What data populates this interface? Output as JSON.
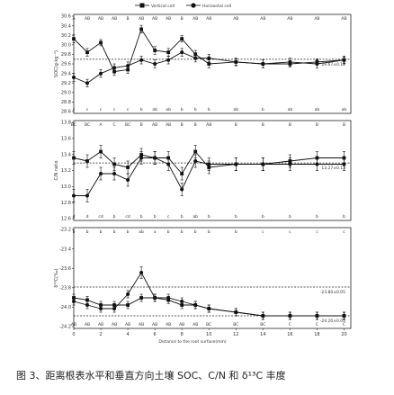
{
  "chart_data": {
    "type": "line",
    "legend": [
      "Vertical cell",
      "Horizontal cell"
    ],
    "legend_placement": "top-center",
    "x": [
      0,
      1,
      2,
      3,
      4,
      5,
      6,
      7,
      8,
      9,
      10,
      12,
      14,
      16,
      18,
      20
    ],
    "x_tick_labels": [
      "0",
      "2",
      "4",
      "6",
      "8",
      "10",
      "12",
      "14",
      "16",
      "18",
      "20"
    ],
    "xlabel": "Distance to the root surface(mm)",
    "panels": [
      {
        "ylabel": "SOC(g·kg⁻¹)",
        "ylim": [
          28.5,
          30.6
        ],
        "y_tick_labels": [
          "30.6",
          "30.4",
          "30.2",
          "30.0",
          "29.8",
          "29.6",
          "29.4",
          "29.2",
          "29.0",
          "28.8",
          "28.6"
        ],
        "reference_line": 29.67,
        "reference_label": "29.67±0.12",
        "letters_top": [
          "A",
          "AB",
          "AB",
          "AB",
          "B",
          "AB",
          "AB",
          "AB",
          "B",
          "AB",
          "AB",
          "AB",
          "AB",
          "AB",
          "AB",
          "AB"
        ],
        "letters_bottom": [
          "c",
          "c",
          "c",
          "c",
          "c",
          "b",
          "ab",
          "ab",
          "b",
          "b",
          "b",
          "ab",
          "b",
          "ab",
          "ab",
          "ab"
        ],
        "series": [
          {
            "name": "Vertical cell",
            "values": [
              30.2,
              29.85,
              30.1,
              29.35,
              29.4,
              30.45,
              29.9,
              29.85,
              30.2,
              29.8,
              29.55,
              29.6,
              29.55,
              29.55,
              29.6,
              29.65
            ],
            "error": [
              0.1,
              0.1,
              0.08,
              0.1,
              0.1,
              0.1,
              0.1,
              0.1,
              0.08,
              0.1,
              0.1,
              0.08,
              0.1,
              0.08,
              0.08,
              0.08
            ]
          },
          {
            "name": "Horizontal cell",
            "values": [
              29.2,
              29.05,
              29.3,
              29.45,
              29.5,
              29.65,
              29.55,
              29.65,
              29.85,
              29.7,
              29.7,
              29.6,
              29.55,
              29.6,
              29.55,
              29.65
            ],
            "error": [
              0.1,
              0.1,
              0.1,
              0.1,
              0.1,
              0.1,
              0.1,
              0.1,
              0.1,
              0.1,
              0.1,
              0.1,
              0.1,
              0.1,
              0.1,
              0.1
            ]
          }
        ]
      },
      {
        "ylabel": "C/N ratio",
        "ylim": [
          12.5,
          13.8
        ],
        "y_tick_labels": [
          "13.8",
          "13.6",
          "13.4",
          "13.2",
          "13.0",
          "12.8",
          "12.6"
        ],
        "reference_line": 13.27,
        "reference_label": "13.27±0.13",
        "letters_top": [
          "BC",
          "BC",
          "A",
          "C",
          "BC",
          "B",
          "AB",
          "AB",
          "B",
          "B",
          "AB",
          "B",
          "B",
          "B",
          "B",
          "B"
        ],
        "letters_bottom": [
          "d",
          "d",
          "cd",
          "b",
          "cd",
          "b",
          "b",
          "c",
          "b",
          "ab",
          "b",
          "b",
          "b",
          "b",
          "b",
          "b"
        ],
        "series": [
          {
            "name": "Vertical cell",
            "values": [
              13.35,
              13.3,
              13.45,
              13.25,
              13.2,
              13.4,
              13.35,
              13.35,
              13.1,
              13.45,
              13.2,
              13.25,
              13.25,
              13.3,
              13.35,
              13.35
            ],
            "error": [
              0.1,
              0.1,
              0.1,
              0.1,
              0.1,
              0.1,
              0.1,
              0.1,
              0.1,
              0.1,
              0.1,
              0.1,
              0.1,
              0.1,
              0.1,
              0.1
            ]
          },
          {
            "name": "Horizontal cell",
            "values": [
              12.75,
              12.75,
              13.1,
              13.1,
              13.0,
              13.35,
              13.35,
              13.25,
              12.85,
              13.3,
              13.25,
              13.25,
              13.25,
              13.25,
              13.25,
              13.25
            ],
            "error": [
              0.1,
              0.1,
              0.1,
              0.1,
              0.1,
              0.1,
              0.1,
              0.1,
              0.1,
              0.1,
              0.1,
              0.1,
              0.1,
              0.1,
              0.1,
              0.1
            ]
          }
        ]
      },
      {
        "ylabel": "δ¹³C(‰)",
        "ylim": [
          -24.25,
          -23.1
        ],
        "y_tick_labels": [
          "-23.2",
          "-23.4",
          "-23.6",
          "-23.8",
          "-24.0",
          "-24.2"
        ],
        "reference_lines": [
          -23.8,
          -24.2
        ],
        "reference_labels": [
          "-23.80±0.05",
          "-24.20±0.05"
        ],
        "letters_top": [
          "b",
          "b",
          "b",
          "b",
          "b",
          "ab",
          "a",
          "b",
          "b",
          "b",
          "b",
          "b",
          "c",
          "c",
          "c",
          "c"
        ],
        "letters_bottom": [
          "AB",
          "AB",
          "AB",
          "AB",
          "AB",
          "AB",
          "AB",
          "AB",
          "AB",
          "AB",
          "BC",
          "BC",
          "BC",
          "C",
          "C",
          "C"
        ],
        "series": [
          {
            "name": "Vertical cell",
            "values": [
              -23.95,
              -23.98,
              -24.05,
              -24.05,
              -24.05,
              -23.95,
              -23.95,
              -23.98,
              -24.05,
              -24.05,
              -24.1,
              -24.15,
              -24.2,
              -24.2,
              -24.2,
              -24.2
            ],
            "error": [
              0.05,
              0.05,
              0.05,
              0.05,
              0.05,
              0.05,
              0.05,
              0.05,
              0.05,
              0.05,
              0.05,
              0.05,
              0.05,
              0.05,
              0.05,
              0.05
            ]
          },
          {
            "name": "Horizontal cell",
            "values": [
              -24.0,
              -24.05,
              -24.1,
              -24.1,
              -23.9,
              -23.6,
              -23.95,
              -23.95,
              -24.0,
              -24.05,
              -24.1,
              -24.15,
              -24.2,
              -24.2,
              -24.2,
              -24.2
            ],
            "error": [
              0.05,
              0.05,
              0.05,
              0.05,
              0.05,
              0.08,
              0.05,
              0.05,
              0.05,
              0.05,
              0.05,
              0.05,
              0.05,
              0.05,
              0.05,
              0.05
            ]
          }
        ]
      }
    ]
  },
  "caption": "图 3、距离根表水平和垂直方向土壤 SOC、C/N 和 δ¹³C 丰度"
}
